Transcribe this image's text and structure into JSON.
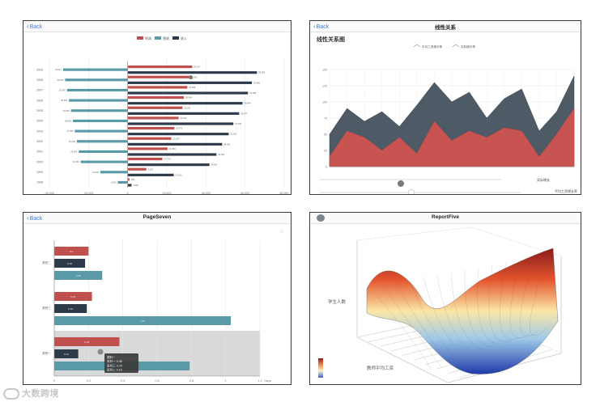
{
  "watermark": {
    "text": "大数跨境"
  },
  "panel1": {
    "back_label": "Back",
    "chart_data": {
      "type": "bar",
      "orientation": "horizontal",
      "categories": [
        "2009",
        "2008",
        "2007",
        "2006",
        "2005",
        "2004",
        "2003",
        "2002",
        "2001",
        "2000",
        "1999",
        "1998"
      ],
      "series": [
        {
          "name": "利润",
          "color": "#c0504d",
          "values": [
            33017,
            31435,
            30488,
            28694,
            28031,
            26030,
            23875,
            22283,
            20350,
            17730,
            9520,
            900
          ]
        },
        {
          "name": "营收",
          "color": "#5a9aa8",
          "values": [
            -33017,
            -32000,
            -31000,
            -30000,
            -29000,
            -28000,
            -27000,
            -26000,
            -25000,
            -24000,
            -14000,
            -5000
          ]
        },
        {
          "name": "收入",
          "color": "#2d3a4a",
          "values": [
            66034,
            63469,
            61488,
            58694,
            56977,
            54030,
            51626,
            48283,
            45350,
            41807,
            23520,
            2000
          ]
        }
      ],
      "xticks": [
        "-40,000",
        "-20,000",
        "0",
        "20,000",
        "40,000",
        "60,000",
        "80,000"
      ],
      "xlim": [
        -40000,
        80000
      ]
    }
  },
  "panel2": {
    "back_label": "Back",
    "title": "线性关系",
    "chart_title": "线性关系图",
    "chart_data": {
      "type": "area",
      "x": [
        1,
        2,
        3,
        4,
        5,
        6,
        7,
        8,
        9,
        10,
        11,
        12,
        13,
        14,
        15
      ],
      "series": [
        {
          "name": "平均工资增长率",
          "color": "#4e5a66",
          "values": [
            50,
            90,
            70,
            85,
            62,
            95,
            130,
            100,
            115,
            75,
            105,
            120,
            55,
            85,
            140
          ]
        },
        {
          "name": "实际增长率",
          "color": "#d9534f",
          "values": [
            15,
            55,
            45,
            25,
            45,
            20,
            70,
            40,
            55,
            45,
            60,
            55,
            15,
            50,
            90
          ]
        }
      ],
      "ylim": [
        0,
        150
      ],
      "yticks": [
        "0",
        "25",
        "50",
        "75",
        "100",
        "125",
        "150"
      ]
    },
    "slider1_label": "实际增长",
    "slider2_label": "平均工资增长率"
  },
  "panel3": {
    "back_label": "Back",
    "title": "PageSeven",
    "chart_data": {
      "type": "bar",
      "orientation": "horizontal",
      "categories": [
        "类别二",
        "类别三",
        "类别一"
      ],
      "series": [
        {
          "name": "系列一",
          "color": "#c0504d",
          "values": [
            0.2,
            0.22,
            0.38
          ]
        },
        {
          "name": "系列二",
          "color": "#2d3a4a",
          "values": [
            0.18,
            0.19,
            0.14
          ]
        },
        {
          "name": "系列三",
          "color": "#5a9aa8",
          "values": [
            0.28,
            1.03,
            0.79
          ]
        }
      ],
      "xticks": [
        "0",
        "0.2",
        "0.4",
        "0.6",
        "0.8",
        "1",
        "1.2"
      ],
      "xlim": [
        0,
        1.2
      ],
      "xlabel": "Days"
    },
    "tooltip": [
      "类别一",
      "系列一: 0.38",
      "系列三: 0.79",
      "系列二: 0.14"
    ]
  },
  "panel4": {
    "title": "ReportFive",
    "ylabel": "学生人数",
    "xlabel": "教师平均工资",
    "chart_data": {
      "type": "surface"
    }
  }
}
